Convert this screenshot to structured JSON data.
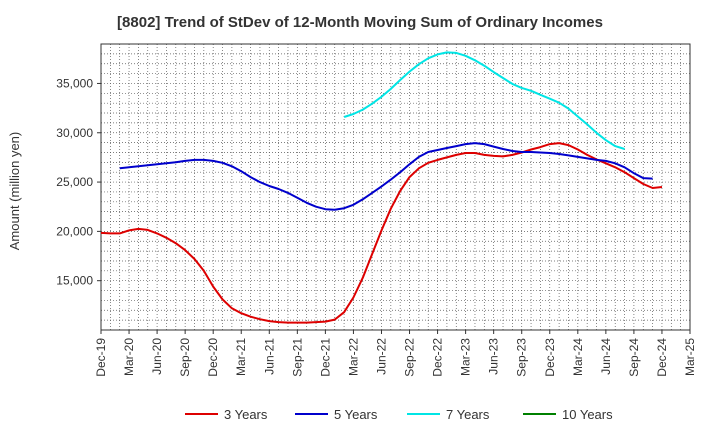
{
  "chart_data": {
    "type": "line",
    "title": "[8802]  Trend of StDev of 12-Month Moving Sum of Ordinary Incomes",
    "xlabel": "",
    "ylabel": "Amount (million yen)",
    "ylim": [
      10000,
      39000
    ],
    "yticks": [
      15000,
      20000,
      25000,
      30000,
      35000
    ],
    "ytick_labels": [
      "15,000",
      "20,000",
      "25,000",
      "30,000",
      "35,000"
    ],
    "grid": true,
    "legend_position": "bottom",
    "x_tick_labels": [
      "Dec-19",
      "Mar-20",
      "Jun-20",
      "Sep-20",
      "Dec-20",
      "Mar-21",
      "Jun-21",
      "Sep-21",
      "Dec-21",
      "Mar-22",
      "Jun-22",
      "Sep-22",
      "Dec-22",
      "Mar-23",
      "Jun-23",
      "Sep-23",
      "Dec-23",
      "Mar-24",
      "Jun-24",
      "Sep-24",
      "Dec-24",
      "Mar-25"
    ],
    "series": [
      {
        "name": "3 Years",
        "color": "#dd0000",
        "start_index": 0,
        "values": [
          19850,
          19800,
          19800,
          20100,
          20250,
          20150,
          19800,
          19350,
          18800,
          18100,
          17200,
          16000,
          14400,
          13100,
          12200,
          11700,
          11350,
          11100,
          10900,
          10800,
          10750,
          10750,
          10750,
          10800,
          10850,
          11050,
          11800,
          13300,
          15300,
          17700,
          20100,
          22300,
          24100,
          25500,
          26400,
          26950,
          27250,
          27500,
          27750,
          27950,
          27950,
          27750,
          27650,
          27600,
          27750,
          28000,
          28300,
          28550,
          28850,
          28950,
          28750,
          28300,
          27750,
          27300,
          26900,
          26500,
          26000,
          25400,
          24800,
          24400,
          24500
        ]
      },
      {
        "name": "5 Years",
        "color": "#0000cc",
        "start_index": 2,
        "values": [
          26400,
          26500,
          26600,
          26700,
          26800,
          26900,
          27000,
          27150,
          27250,
          27250,
          27150,
          26950,
          26600,
          26100,
          25500,
          25000,
          24600,
          24300,
          23900,
          23400,
          22900,
          22500,
          22250,
          22200,
          22350,
          22700,
          23250,
          23900,
          24550,
          25250,
          26000,
          26800,
          27550,
          28050,
          28250,
          28450,
          28650,
          28850,
          28950,
          28850,
          28600,
          28350,
          28150,
          28050,
          28050,
          28000,
          27950,
          27850,
          27700,
          27550,
          27400,
          27250,
          27150,
          26900,
          26500,
          25900,
          25400,
          25350
        ]
      },
      {
        "name": "7 Years",
        "color": "#00e5e5",
        "start_index": 26,
        "values": [
          31600,
          31900,
          32350,
          32950,
          33650,
          34450,
          35350,
          36200,
          36950,
          37550,
          37950,
          38150,
          38100,
          37800,
          37350,
          36800,
          36150,
          35550,
          34950,
          34550,
          34250,
          33850,
          33450,
          33050,
          32450,
          31650,
          30850,
          30000,
          29250,
          28650,
          28350
        ]
      },
      {
        "name": "10 Years",
        "color": "#008000",
        "start_index": 0,
        "values": []
      }
    ]
  }
}
